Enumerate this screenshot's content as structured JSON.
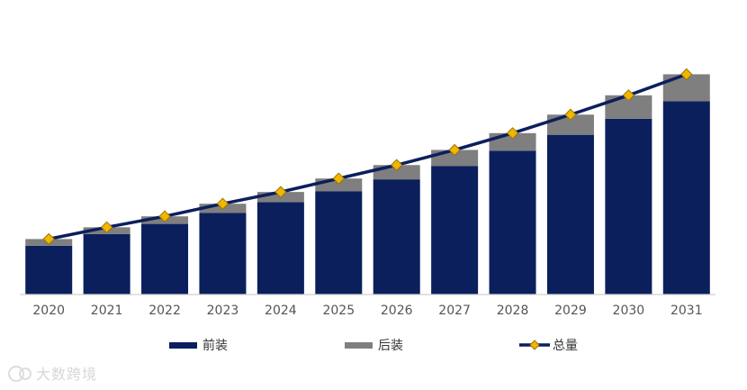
{
  "chart_data": {
    "type": "bar",
    "stacked": true,
    "title": "",
    "xlabel": "",
    "ylabel": "",
    "categories": [
      "2020",
      "2021",
      "2022",
      "2023",
      "2024",
      "2025",
      "2026",
      "2027",
      "2028",
      "2029",
      "2030",
      "2031"
    ],
    "ylim": [
      0,
      300
    ],
    "grid": false,
    "legend_position": "bottom",
    "series": [
      {
        "name": "前装",
        "type": "bar",
        "color": "#0b1f5c",
        "values": [
          58,
          72,
          84,
          97,
          110,
          123,
          137,
          153,
          171,
          190,
          209,
          230
        ]
      },
      {
        "name": "后装",
        "type": "bar",
        "color": "#7f7f7f",
        "values": [
          8,
          8,
          9,
          11,
          12,
          15,
          17,
          19,
          21,
          24,
          28,
          32
        ]
      },
      {
        "name": "总量",
        "type": "line",
        "color": "#0b1f5c",
        "marker_color": "#f2b600",
        "values": [
          66,
          80,
          93,
          108,
          122,
          138,
          154,
          172,
          192,
          214,
          237,
          262
        ]
      }
    ]
  },
  "watermark": {
    "text": "大数跨境"
  }
}
